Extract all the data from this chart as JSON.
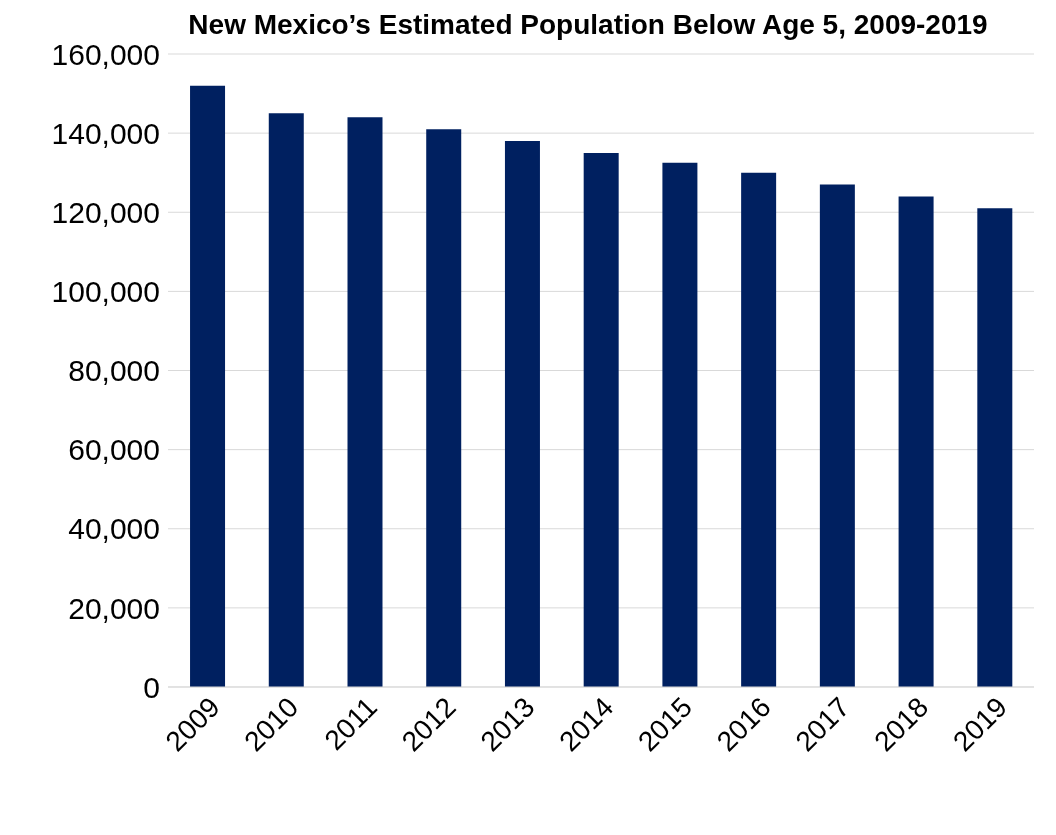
{
  "chart_data": {
    "type": "bar",
    "title": "New Mexico’s Estimated Population Below Age 5, 2009-2019",
    "categories": [
      "2009",
      "2010",
      "2011",
      "2012",
      "2013",
      "2014",
      "2015",
      "2016",
      "2017",
      "2018",
      "2019"
    ],
    "values": [
      152000,
      145000,
      144000,
      141000,
      138000,
      135000,
      132500,
      130000,
      127000,
      124000,
      121000
    ],
    "color": "#002060",
    "ylim": [
      0,
      160000
    ],
    "yticks": [
      0,
      {
        "value": 20000,
        "label": "20,000"
      },
      {
        "value": 40000,
        "label": "40,000"
      },
      {
        "value": 60000,
        "label": "60,000"
      },
      {
        "value": 80000,
        "label": "80,000"
      },
      {
        "value": 100000,
        "label": "100,000"
      },
      {
        "value": 120000,
        "label": "120,000"
      },
      {
        "value": 140000,
        "label": "140,000"
      },
      {
        "value": 160000,
        "label": "160,000"
      }
    ],
    "grid": "y"
  }
}
